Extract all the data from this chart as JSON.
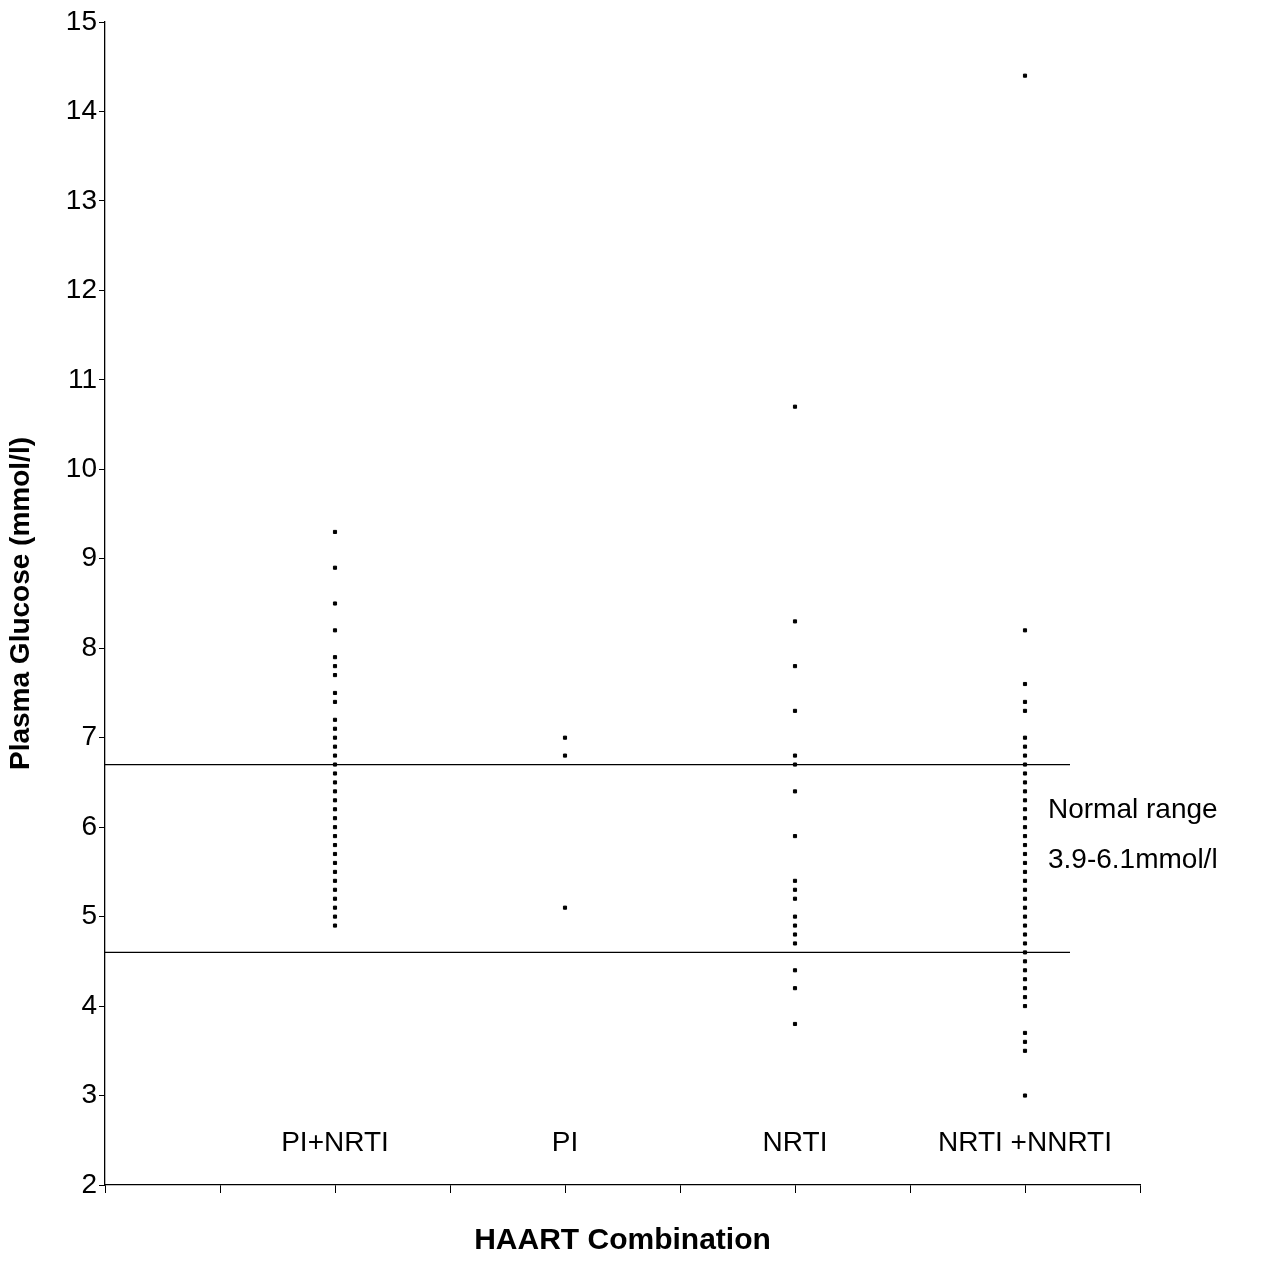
{
  "chart_data": {
    "type": "scatter",
    "xlabel": "HAART Combination",
    "ylabel": "Plasma Glucose (mmol/l)",
    "categories": [
      null,
      null,
      "PI+NRTI",
      null,
      "PI",
      null,
      "NRTI",
      null,
      "NRTI +NNRTI",
      null
    ],
    "ylim": [
      2,
      15
    ],
    "yticks": [
      2,
      3,
      4,
      5,
      6,
      7,
      8,
      9,
      10,
      11,
      12,
      13,
      14,
      15
    ],
    "grid": false,
    "legend": false,
    "marker": "square",
    "series": [
      {
        "color": "#000000",
        "x": [
          "PI+NRTI",
          "PI+NRTI",
          "PI+NRTI",
          "PI+NRTI",
          "PI+NRTI",
          "PI+NRTI",
          "PI+NRTI",
          "PI+NRTI",
          "PI+NRTI",
          "PI+NRTI",
          "PI+NRTI",
          "PI+NRTI",
          "PI+NRTI",
          "PI+NRTI",
          "PI+NRTI",
          "PI+NRTI",
          "PI+NRTI",
          "PI+NRTI",
          "PI+NRTI",
          "PI+NRTI",
          "PI+NRTI",
          "PI+NRTI",
          "PI+NRTI",
          "PI+NRTI",
          "PI+NRTI",
          "PI+NRTI",
          "PI+NRTI",
          "PI+NRTI",
          "PI+NRTI",
          "PI+NRTI",
          "PI+NRTI",
          "PI+NRTI",
          "PI+NRTI"
        ],
        "values": [
          9.3,
          8.9,
          8.5,
          8.2,
          7.9,
          7.8,
          7.7,
          7.5,
          7.4,
          7.2,
          7.1,
          7.0,
          6.9,
          6.8,
          6.7,
          6.6,
          6.5,
          6.4,
          6.3,
          6.2,
          6.1,
          6.0,
          5.9,
          5.8,
          5.7,
          5.6,
          5.5,
          5.4,
          5.3,
          5.2,
          5.1,
          5.0,
          4.9
        ]
      },
      {
        "color": "#000000",
        "x": [
          "PI",
          "PI",
          "PI"
        ],
        "values": [
          7.0,
          6.8,
          5.1
        ]
      },
      {
        "color": "#000000",
        "x": [
          "NRTI",
          "NRTI",
          "NRTI",
          "NRTI",
          "NRTI",
          "NRTI",
          "NRTI",
          "NRTI",
          "NRTI",
          "NRTI",
          "NRTI",
          "NRTI",
          "NRTI",
          "NRTI",
          "NRTI",
          "NRTI",
          "NRTI",
          "NRTI"
        ],
        "values": [
          10.7,
          8.3,
          7.8,
          7.3,
          6.8,
          6.7,
          6.4,
          5.9,
          5.4,
          5.3,
          5.2,
          5.0,
          4.9,
          4.8,
          4.7,
          4.4,
          4.2,
          3.8
        ]
      },
      {
        "color": "#000000",
        "x": [
          "NRTI +NNRTI",
          "NRTI +NNRTI",
          "NRTI +NNRTI",
          "NRTI +NNRTI",
          "NRTI +NNRTI",
          "NRTI +NNRTI",
          "NRTI +NNRTI",
          "NRTI +NNRTI",
          "NRTI +NNRTI",
          "NRTI +NNRTI",
          "NRTI +NNRTI",
          "NRTI +NNRTI",
          "NRTI +NNRTI",
          "NRTI +NNRTI",
          "NRTI +NNRTI",
          "NRTI +NNRTI",
          "NRTI +NNRTI",
          "NRTI +NNRTI",
          "NRTI +NNRTI",
          "NRTI +NNRTI",
          "NRTI +NNRTI",
          "NRTI +NNRTI",
          "NRTI +NNRTI",
          "NRTI +NNRTI",
          "NRTI +NNRTI",
          "NRTI +NNRTI",
          "NRTI +NNRTI",
          "NRTI +NNRTI",
          "NRTI +NNRTI",
          "NRTI +NNRTI",
          "NRTI +NNRTI",
          "NRTI +NNRTI",
          "NRTI +NNRTI",
          "NRTI +NNRTI",
          "NRTI +NNRTI",
          "NRTI +NNRTI",
          "NRTI +NNRTI",
          "NRTI +NNRTI",
          "NRTI +NNRTI",
          "NRTI +NNRTI"
        ],
        "values": [
          14.4,
          8.2,
          7.6,
          7.4,
          7.3,
          7.0,
          6.9,
          6.8,
          6.7,
          6.6,
          6.5,
          6.4,
          6.3,
          6.2,
          6.1,
          6.0,
          5.9,
          5.8,
          5.7,
          5.6,
          5.5,
          5.4,
          5.3,
          5.2,
          5.1,
          5.0,
          4.9,
          4.8,
          4.7,
          4.6,
          4.5,
          4.4,
          4.3,
          4.2,
          4.1,
          4.0,
          3.7,
          3.6,
          3.5,
          3.0
        ]
      }
    ],
    "ref_lines": [
      {
        "axis": "y",
        "value": 6.7,
        "color": "#000000"
      },
      {
        "axis": "y",
        "value": 4.6,
        "color": "#000000"
      }
    ],
    "annotations": [
      "Normal range",
      "3.9-6.1mmol/l"
    ]
  }
}
